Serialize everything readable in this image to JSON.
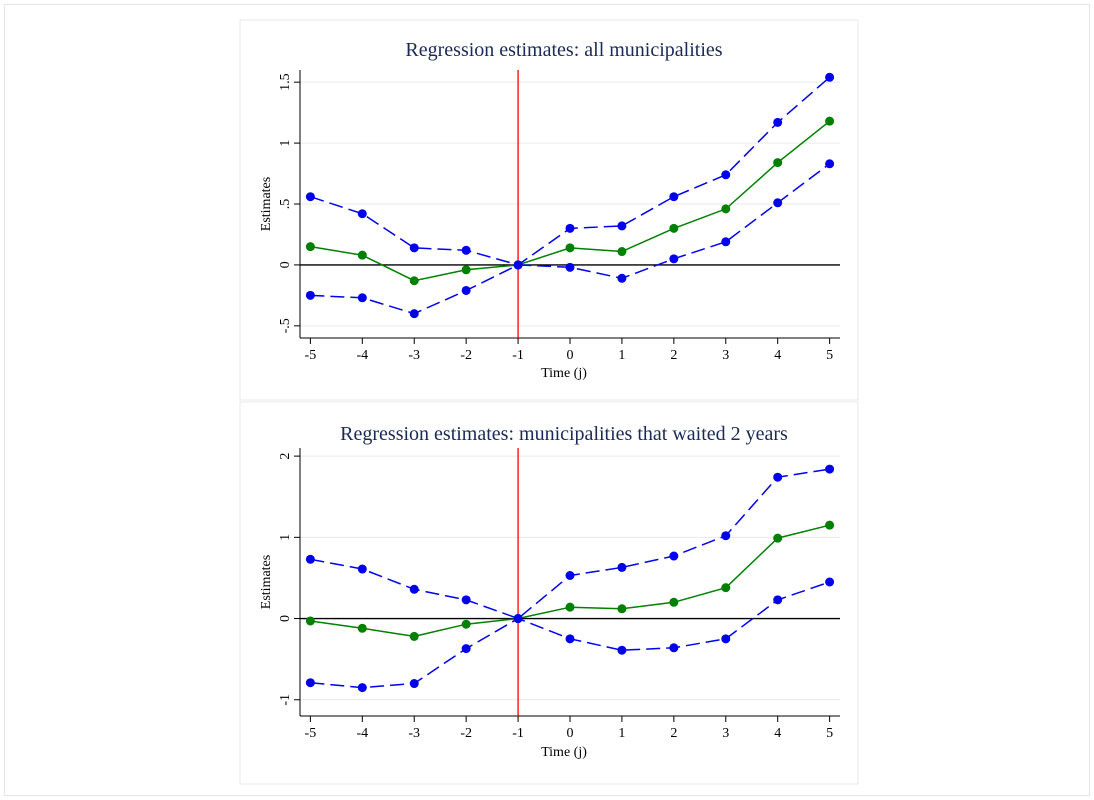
{
  "chart_data": [
    {
      "type": "line",
      "title": "Regression estimates: all municipalities",
      "xlabel": "Time (j)",
      "ylabel": "Estimates",
      "x": [
        -5,
        -4,
        -3,
        -2,
        -1,
        0,
        1,
        2,
        3,
        4,
        5
      ],
      "xticks": [
        -5,
        -4,
        -3,
        -2,
        -1,
        0,
        1,
        2,
        3,
        4,
        5
      ],
      "xtick_labels": [
        "-5",
        "-4",
        "-3",
        "-2",
        "-1",
        "0",
        "1",
        "2",
        "3",
        "4",
        "5"
      ],
      "yticks": [
        -0.5,
        0,
        0.5,
        1,
        1.5
      ],
      "ytick_labels": [
        "-.5",
        "0",
        ".5",
        "1",
        "1.5"
      ],
      "xlim": [
        -5.2,
        5.2
      ],
      "ylim": [
        -0.6,
        1.6
      ],
      "grid": true,
      "zero_line": 0,
      "vline_x": -1,
      "series": [
        {
          "style": "dashed",
          "color": "#0000ee",
          "values": [
            -0.25,
            -0.27,
            -0.4,
            -0.21,
            0.0,
            -0.02,
            -0.11,
            0.05,
            0.19,
            0.51,
            0.83
          ]
        },
        {
          "style": "solid",
          "color": "#008000",
          "values": [
            0.15,
            0.08,
            -0.13,
            -0.04,
            0.0,
            0.14,
            0.11,
            0.3,
            0.46,
            0.84,
            1.18
          ]
        },
        {
          "style": "dashed",
          "color": "#0000ee",
          "values": [
            0.56,
            0.42,
            0.14,
            0.12,
            0.0,
            0.3,
            0.32,
            0.56,
            0.74,
            1.17,
            1.54
          ]
        }
      ]
    },
    {
      "type": "line",
      "title": "Regression estimates: municipalities that waited 2 years",
      "xlabel": "Time (j)",
      "ylabel": "Estimates",
      "x": [
        -5,
        -4,
        -3,
        -2,
        -1,
        0,
        1,
        2,
        3,
        4,
        5
      ],
      "xticks": [
        -5,
        -4,
        -3,
        -2,
        -1,
        0,
        1,
        2,
        3,
        4,
        5
      ],
      "xtick_labels": [
        "-5",
        "-4",
        "-3",
        "-2",
        "-1",
        "0",
        "1",
        "2",
        "3",
        "4",
        "5"
      ],
      "yticks": [
        -1,
        0,
        1,
        2
      ],
      "ytick_labels": [
        "-1",
        "0",
        "1",
        "2"
      ],
      "xlim": [
        -5.2,
        5.2
      ],
      "ylim": [
        -1.2,
        2.1
      ],
      "grid": true,
      "zero_line": 0,
      "vline_x": -1,
      "series": [
        {
          "style": "dashed",
          "color": "#0000ee",
          "values": [
            -0.79,
            -0.85,
            -0.8,
            -0.37,
            0.0,
            -0.25,
            -0.39,
            -0.36,
            -0.25,
            0.23,
            0.45
          ]
        },
        {
          "style": "solid",
          "color": "#008000",
          "values": [
            -0.03,
            -0.12,
            -0.22,
            -0.07,
            0.0,
            0.14,
            0.12,
            0.2,
            0.38,
            0.99,
            1.15
          ]
        },
        {
          "style": "dashed",
          "color": "#0000ee",
          "values": [
            0.73,
            0.61,
            0.36,
            0.23,
            0.0,
            0.53,
            0.63,
            0.77,
            1.02,
            1.74,
            1.84
          ]
        }
      ]
    }
  ],
  "colors": {
    "title": "#1a2a55",
    "axis": "#000000",
    "grid": "#eaeaea",
    "vline": "#ff0000",
    "panel_border": "#e8e8e8"
  }
}
